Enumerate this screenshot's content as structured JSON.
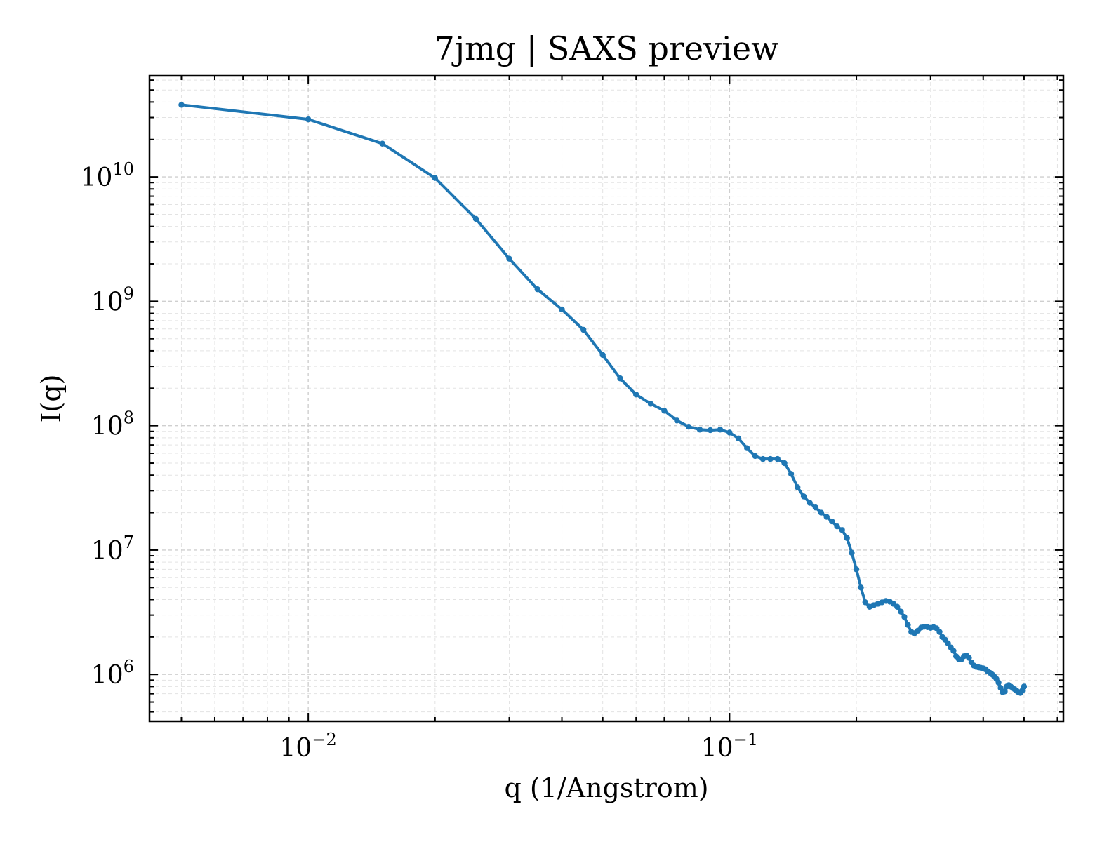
{
  "chart_data": {
    "type": "line",
    "title": "7jmg | SAXS preview",
    "xlabel": "q (1/Angstrom)",
    "ylabel": "I(q)",
    "xscale": "log",
    "yscale": "log",
    "xlim": [
      0.0042,
      0.62
    ],
    "ylim": [
      420000,
      65000000000
    ],
    "grid": "on",
    "line_color": "#1f77b4",
    "x_ticks": [
      {
        "value": 0.01,
        "base": "10",
        "exp": "−2"
      },
      {
        "value": 0.1,
        "base": "10",
        "exp": "−1"
      }
    ],
    "y_ticks": [
      {
        "value": 1000000,
        "base": "10",
        "exp": "6"
      },
      {
        "value": 10000000,
        "base": "10",
        "exp": "7"
      },
      {
        "value": 100000000,
        "base": "10",
        "exp": "8"
      },
      {
        "value": 1000000000,
        "base": "10",
        "exp": "9"
      },
      {
        "value": 10000000000,
        "base": "10",
        "exp": "10"
      }
    ],
    "series": [
      {
        "x": [
          0.005,
          0.01,
          0.015,
          0.02,
          0.025,
          0.03,
          0.035,
          0.04,
          0.045,
          0.05,
          0.055,
          0.06,
          0.065,
          0.07,
          0.075,
          0.08,
          0.085,
          0.09,
          0.095,
          0.1,
          0.105,
          0.11,
          0.115,
          0.12,
          0.125,
          0.13,
          0.135,
          0.14,
          0.145,
          0.15,
          0.155,
          0.16,
          0.165,
          0.17,
          0.175,
          0.18,
          0.185,
          0.19,
          0.195,
          0.2,
          0.205,
          0.21,
          0.215,
          0.22,
          0.225,
          0.23,
          0.235,
          0.24,
          0.245,
          0.25,
          0.255,
          0.26,
          0.265,
          0.27,
          0.275,
          0.28,
          0.285,
          0.29,
          0.295,
          0.3,
          0.305,
          0.31,
          0.315,
          0.32,
          0.325,
          0.33,
          0.335,
          0.34,
          0.345,
          0.35,
          0.355,
          0.36,
          0.365,
          0.37,
          0.375,
          0.38,
          0.385,
          0.39,
          0.395,
          0.4,
          0.405,
          0.41,
          0.415,
          0.42,
          0.425,
          0.43,
          0.435,
          0.44,
          0.445,
          0.45,
          0.455,
          0.46,
          0.465,
          0.47,
          0.475,
          0.48,
          0.485,
          0.49,
          0.495,
          0.5
        ],
        "y": [
          38000000000,
          29000000000,
          18500000000,
          9800000000,
          4600000000,
          2200000000,
          1250000000,
          860000000,
          590000000,
          370000000,
          240000000,
          178000000,
          150000000,
          132000000,
          110000000,
          98000000,
          93000000,
          92000000,
          93000000,
          88000000,
          79000000,
          66000000,
          57000000,
          54000000,
          54000000,
          54000000,
          50000000,
          41000000,
          32000000,
          27000000,
          24000000,
          22000000,
          20000000,
          18500000,
          17000000,
          15500000,
          14500000,
          12500000,
          9500000,
          7000000,
          5000000,
          3800000,
          3500000,
          3600000,
          3700000,
          3800000,
          3900000,
          3850000,
          3700000,
          3500000,
          3200000,
          2900000,
          2500000,
          2200000,
          2150000,
          2250000,
          2380000,
          2420000,
          2400000,
          2370000,
          2400000,
          2350000,
          2200000,
          2000000,
          1900000,
          1780000,
          1650000,
          1550000,
          1400000,
          1330000,
          1320000,
          1400000,
          1420000,
          1360000,
          1250000,
          1180000,
          1150000,
          1140000,
          1130000,
          1120000,
          1100000,
          1060000,
          1030000,
          1000000,
          960000,
          920000,
          860000,
          780000,
          720000,
          730000,
          800000,
          820000,
          800000,
          780000,
          760000,
          740000,
          720000,
          710000,
          740000,
          800000
        ]
      }
    ]
  }
}
